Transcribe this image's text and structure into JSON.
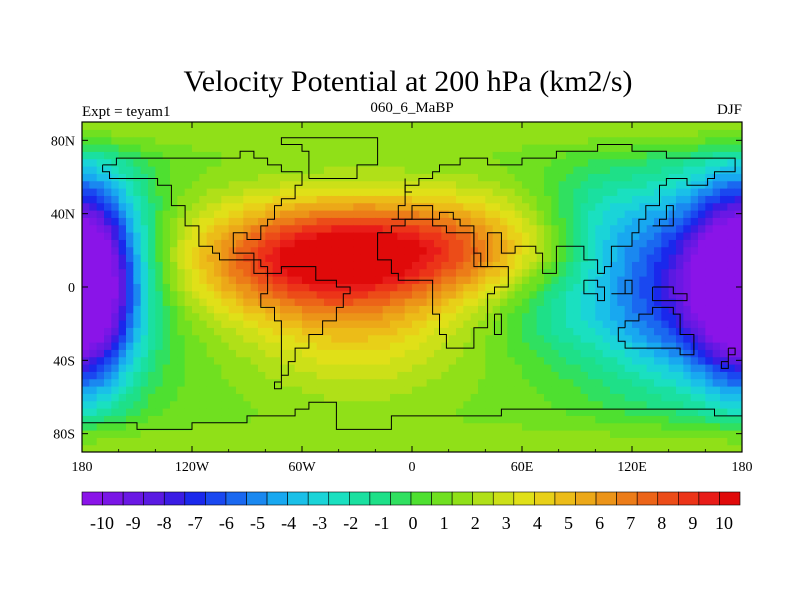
{
  "chart_data": {
    "type": "heatmap",
    "title": "Velocity Potential at 200 hPa (km2/s)",
    "left_string": "Expt = teyam1",
    "center_string": "060_6_MaBP",
    "right_string": "DJF",
    "x_ticks": [
      {
        "value": -180,
        "label": "180"
      },
      {
        "value": -120,
        "label": "120W"
      },
      {
        "value": -60,
        "label": "60W"
      },
      {
        "value": 0,
        "label": "0"
      },
      {
        "value": 60,
        "label": "60E"
      },
      {
        "value": 120,
        "label": "120E"
      },
      {
        "value": 180,
        "label": "180"
      }
    ],
    "y_ticks": [
      {
        "value": 80,
        "label": "80N"
      },
      {
        "value": 40,
        "label": "40N"
      },
      {
        "value": 0,
        "label": "0"
      },
      {
        "value": -40,
        "label": "40S"
      },
      {
        "value": -80,
        "label": "80S"
      }
    ],
    "xlim": [
      -180,
      180
    ],
    "ylim": [
      -90,
      90
    ],
    "value_range": [
      -10,
      10
    ],
    "colorbar_labels": [
      "-10",
      "-9",
      "-8",
      "-7",
      "-6",
      "-5",
      "-4",
      "-3",
      "-2",
      "-1",
      "0",
      "1",
      "2",
      "3",
      "4",
      "5",
      "6",
      "7",
      "8",
      "9",
      "10"
    ],
    "colorbar_colors": [
      "#8a14e8",
      "#7a16e6",
      "#6a18e4",
      "#5a1ae2",
      "#3a1ce4",
      "#1a28ec",
      "#1a48f0",
      "#1a68f0",
      "#1a88f0",
      "#18a8f0",
      "#1ac0e8",
      "#1ad4d8",
      "#1ae0c0",
      "#1ae0a0",
      "#1ee088",
      "#30e060",
      "#4ee030",
      "#70e020",
      "#90e018",
      "#b0e018",
      "#cce018",
      "#e0e018",
      "#e8d018",
      "#ecbc18",
      "#eca818",
      "#ec9418",
      "#ec7c18",
      "#ec6418",
      "#ec4c18",
      "#ec3418",
      "#e81c18",
      "#e00a0a"
    ],
    "centers": [
      {
        "lon": -60,
        "lat": 15,
        "amp": 6.5,
        "sx": 50,
        "sy": 22
      },
      {
        "lon": 10,
        "lat": 22,
        "amp": 5.5,
        "sx": 55,
        "sy": 20
      },
      {
        "lon": -30,
        "lat": -25,
        "amp": 2.5,
        "sx": 40,
        "sy": 25
      },
      {
        "lon": 150,
        "lat": 0,
        "amp": -7.5,
        "sx": 42,
        "sy": 38
      },
      {
        "lon": -178,
        "lat": 20,
        "amp": -6.0,
        "sx": 22,
        "sy": 35
      },
      {
        "lon": -178,
        "lat": -15,
        "amp": -5.5,
        "sx": 18,
        "sy": 35
      },
      {
        "lon": 100,
        "lat": 35,
        "amp": -2.0,
        "sx": 25,
        "sy": 20
      },
      {
        "lon": 75,
        "lat": -10,
        "amp": -1.5,
        "sx": 25,
        "sy": 18
      }
    ],
    "base_value": 1.0,
    "land_outlines": [
      [
        [
          -167,
          66
        ],
        [
          -160,
          70
        ],
        [
          -140,
          70
        ],
        [
          -125,
          72
        ],
        [
          -110,
          72
        ],
        [
          -95,
          74
        ],
        [
          -85,
          72
        ],
        [
          -80,
          66
        ],
        [
          -70,
          62
        ],
        [
          -60,
          56
        ],
        [
          -65,
          48
        ],
        [
          -70,
          44
        ],
        [
          -75,
          38
        ],
        [
          -80,
          32
        ],
        [
          -82,
          26
        ],
        [
          -90,
          30
        ],
        [
          -97,
          26
        ],
        [
          -97,
          20
        ],
        [
          -92,
          18
        ],
        [
          -88,
          16
        ],
        [
          -83,
          10
        ],
        [
          -78,
          8
        ],
        [
          -80,
          8
        ],
        [
          -88,
          13
        ],
        [
          -96,
          16
        ],
        [
          -105,
          20
        ],
        [
          -110,
          24
        ],
        [
          -117,
          32
        ],
        [
          -122,
          38
        ],
        [
          -124,
          46
        ],
        [
          -130,
          54
        ],
        [
          -140,
          60
        ],
        [
          -152,
          58
        ],
        [
          -158,
          58
        ],
        [
          -165,
          62
        ],
        [
          -167,
          66
        ]
      ],
      [
        [
          -78,
          8
        ],
        [
          -72,
          12
        ],
        [
          -62,
          10
        ],
        [
          -52,
          5
        ],
        [
          -42,
          0
        ],
        [
          -35,
          -5
        ],
        [
          -37,
          -12
        ],
        [
          -40,
          -20
        ],
        [
          -48,
          -26
        ],
        [
          -55,
          -34
        ],
        [
          -62,
          -40
        ],
        [
          -66,
          -48
        ],
        [
          -70,
          -54
        ],
        [
          -74,
          -50
        ],
        [
          -73,
          -40
        ],
        [
          -72,
          -30
        ],
        [
          -70,
          -18
        ],
        [
          -76,
          -12
        ],
        [
          -81,
          -5
        ],
        [
          -80,
          0
        ],
        [
          -78,
          8
        ]
      ],
      [
        [
          -55,
          60
        ],
        [
          -45,
          60
        ],
        [
          -30,
          68
        ],
        [
          -20,
          74
        ],
        [
          -20,
          80
        ],
        [
          -40,
          83
        ],
        [
          -60,
          82
        ],
        [
          -70,
          78
        ],
        [
          -60,
          74
        ],
        [
          -55,
          60
        ]
      ],
      [
        [
          -10,
          36
        ],
        [
          -6,
          43
        ],
        [
          -2,
          48
        ],
        [
          -5,
          54
        ],
        [
          5,
          58
        ],
        [
          10,
          62
        ],
        [
          15,
          68
        ],
        [
          25,
          71
        ],
        [
          40,
          68
        ],
        [
          60,
          70
        ],
        [
          80,
          73
        ],
        [
          100,
          76
        ],
        [
          120,
          73
        ],
        [
          140,
          72
        ],
        [
          160,
          70
        ],
        [
          175,
          67
        ],
        [
          178,
          64
        ],
        [
          165,
          60
        ],
        [
          160,
          56
        ],
        [
          150,
          59
        ],
        [
          140,
          54
        ],
        [
          135,
          44
        ],
        [
          128,
          38
        ],
        [
          122,
          31
        ],
        [
          120,
          24
        ],
        [
          110,
          20
        ],
        [
          108,
          12
        ],
        [
          104,
          8
        ],
        [
          100,
          14
        ],
        [
          98,
          16
        ],
        [
          92,
          22
        ],
        [
          88,
          22
        ],
        [
          80,
          15
        ],
        [
          77,
          8
        ],
        [
          72,
          20
        ],
        [
          68,
          24
        ],
        [
          58,
          24
        ],
        [
          57,
          20
        ],
        [
          50,
          25
        ],
        [
          48,
          30
        ],
        [
          43,
          15
        ],
        [
          42,
          12
        ],
        [
          35,
          28
        ],
        [
          34,
          32
        ],
        [
          28,
          36
        ],
        [
          24,
          40
        ],
        [
          15,
          38
        ],
        [
          12,
          44
        ],
        [
          5,
          43
        ],
        [
          0,
          38
        ],
        [
          -6,
          36
        ],
        [
          -10,
          36
        ]
      ],
      [
        [
          -17,
          21
        ],
        [
          -17,
          14
        ],
        [
          -12,
          8
        ],
        [
          -8,
          4
        ],
        [
          5,
          5
        ],
        [
          9,
          4
        ],
        [
          10,
          0
        ],
        [
          12,
          -6
        ],
        [
          13,
          -16
        ],
        [
          15,
          -25
        ],
        [
          18,
          -33
        ],
        [
          25,
          -34
        ],
        [
          32,
          -28
        ],
        [
          35,
          -22
        ],
        [
          40,
          -15
        ],
        [
          40,
          -5
        ],
        [
          45,
          0
        ],
        [
          51,
          11
        ],
        [
          43,
          12
        ],
        [
          38,
          18
        ],
        [
          34,
          28
        ],
        [
          32,
          31
        ],
        [
          20,
          32
        ],
        [
          10,
          36
        ],
        [
          -2,
          35
        ],
        [
          -10,
          30
        ],
        [
          -17,
          21
        ]
      ],
      [
        [
          115,
          -22
        ],
        [
          114,
          -30
        ],
        [
          118,
          -35
        ],
        [
          130,
          -32
        ],
        [
          138,
          -35
        ],
        [
          145,
          -38
        ],
        [
          150,
          -37
        ],
        [
          153,
          -28
        ],
        [
          153,
          -25
        ],
        [
          145,
          -15
        ],
        [
          142,
          -11
        ],
        [
          136,
          -12
        ],
        [
          130,
          -13
        ],
        [
          122,
          -17
        ],
        [
          115,
          -22
        ]
      ],
      [
        [
          -180,
          -75
        ],
        [
          -150,
          -77
        ],
        [
          -120,
          -73
        ],
        [
          -90,
          -72
        ],
        [
          -65,
          -65
        ],
        [
          -55,
          -63
        ],
        [
          -40,
          -77
        ],
        [
          -10,
          -71
        ],
        [
          20,
          -70
        ],
        [
          50,
          -67
        ],
        [
          80,
          -67
        ],
        [
          110,
          -66
        ],
        [
          140,
          -67
        ],
        [
          165,
          -72
        ],
        [
          180,
          -78
        ]
      ],
      [
        [
          95,
          5
        ],
        [
          100,
          0
        ],
        [
          105,
          -6
        ],
        [
          100,
          -3
        ],
        [
          95,
          5
        ]
      ],
      [
        [
          110,
          -2
        ],
        [
          118,
          5
        ],
        [
          119,
          -3
        ],
        [
          114,
          -4
        ],
        [
          110,
          -2
        ]
      ],
      [
        [
          131,
          -1
        ],
        [
          141,
          -3
        ],
        [
          150,
          -6
        ],
        [
          147,
          -9
        ],
        [
          138,
          -8
        ],
        [
          131,
          -1
        ]
      ],
      [
        [
          44,
          -13
        ],
        [
          50,
          -16
        ],
        [
          48,
          -25
        ],
        [
          44,
          -22
        ],
        [
          44,
          -13
        ]
      ],
      [
        [
          130,
          32
        ],
        [
          135,
          34
        ],
        [
          141,
          38
        ],
        [
          142,
          44
        ],
        [
          140,
          36
        ],
        [
          134,
          33
        ],
        [
          130,
          32
        ]
      ],
      [
        [
          -5,
          50
        ],
        [
          1,
          53
        ],
        [
          -3,
          58
        ],
        [
          -5,
          56
        ],
        [
          -5,
          50
        ]
      ],
      [
        [
          172,
          -35
        ],
        [
          178,
          -38
        ],
        [
          174,
          -41
        ],
        [
          168,
          -46
        ],
        [
          172,
          -35
        ]
      ]
    ]
  }
}
